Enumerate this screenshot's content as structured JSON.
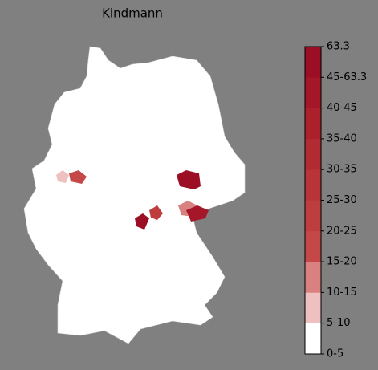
{
  "title": "Kindmann",
  "colorbar": {
    "labels": [
      "0-5",
      "5-10",
      "10-15",
      "15-20",
      "20-25",
      "25-30",
      "30-35",
      "35-40",
      "40-45",
      "45-63.3",
      "63.3"
    ],
    "colors": [
      "#ffffff",
      "#efc0c0",
      "#d98080",
      "#c54848",
      "#be3e40",
      "#b83438",
      "#b22a32",
      "#ac202c",
      "#a51728",
      "#9b0e24"
    ]
  }
}
